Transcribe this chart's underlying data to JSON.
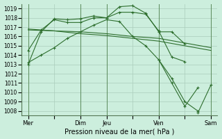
{
  "background_color": "#cceedd",
  "grid_color": "#aaccbb",
  "line_color": "#2d6e2d",
  "xlabel": "Pression niveau de la mer( hPa )",
  "ylim": [
    1007.5,
    1019.5
  ],
  "yticks": [
    1008,
    1009,
    1010,
    1011,
    1012,
    1013,
    1014,
    1015,
    1016,
    1017,
    1018,
    1019
  ],
  "xtick_labels": [
    "Mer",
    "",
    "Dim",
    "Jeu",
    "",
    "Ven",
    "",
    "Sam"
  ],
  "xtick_positions": [
    0,
    2,
    4,
    6,
    8,
    10,
    12,
    14
  ],
  "vlines": [
    0,
    4,
    6,
    10,
    14
  ],
  "series": [
    {
      "x": [
        0,
        1,
        2,
        3,
        4,
        5,
        6,
        7,
        8,
        9,
        10,
        11,
        12
      ],
      "y": [
        1013.0,
        1016.5,
        1017.9,
        1017.8,
        1017.9,
        1018.2,
        1018.0,
        1019.2,
        1019.3,
        1018.5,
        1016.5,
        1016.5,
        1015.2
      ],
      "marker": "+"
    },
    {
      "x": [
        0,
        1,
        2,
        3,
        4,
        5,
        6,
        7,
        8,
        9,
        10,
        11,
        12
      ],
      "y": [
        1014.5,
        1016.7,
        1017.8,
        1017.5,
        1017.5,
        1018.0,
        1018.0,
        1018.6,
        1018.6,
        1018.4,
        1016.6,
        1013.8,
        1013.3
      ],
      "marker": "+"
    },
    {
      "x": [
        0,
        2,
        4,
        6,
        8,
        10,
        12,
        14
      ],
      "y": [
        1016.7,
        1016.6,
        1016.5,
        1016.3,
        1016.0,
        1015.8,
        1015.3,
        1014.8
      ],
      "marker": null
    },
    {
      "x": [
        0,
        2,
        4,
        6,
        8,
        10,
        12,
        14
      ],
      "y": [
        1016.8,
        1016.6,
        1016.3,
        1016.1,
        1015.8,
        1015.5,
        1015.0,
        1014.5
      ],
      "marker": null
    },
    {
      "x": [
        0,
        1,
        2,
        3,
        4,
        5,
        6,
        7,
        8,
        9,
        10,
        11,
        12,
        13,
        14
      ],
      "y": [
        1013.2,
        1014.0,
        1014.8,
        1015.8,
        1016.5,
        1017.2,
        1017.8,
        1017.6,
        1016.0,
        1015.0,
        1013.5,
        1011.5,
        1009.0,
        1008.0,
        null
      ],
      "marker": "+"
    },
    {
      "x": [
        10,
        11,
        12,
        13,
        14
      ],
      "y": [
        1013.5,
        1011.0,
        1008.5,
        1010.5,
        null
      ],
      "marker": "+"
    },
    {
      "x": [
        12,
        13,
        14
      ],
      "y": [
        null,
        1007.8,
        1010.8
      ],
      "marker": "+"
    }
  ]
}
